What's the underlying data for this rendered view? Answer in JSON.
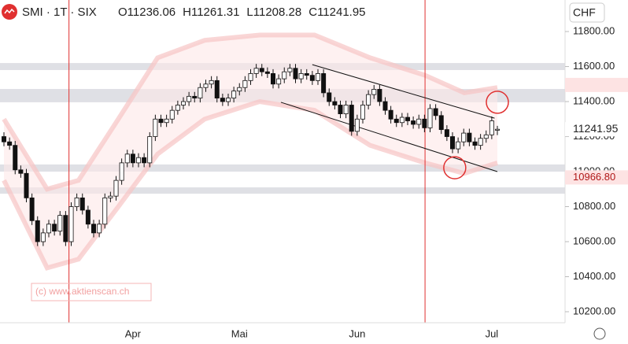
{
  "chart_data": {
    "type": "candlestick",
    "title": "SMI · 1T · SIX",
    "ohlc_labels": [
      "O",
      "H",
      "L",
      "C"
    ],
    "currency": "CHF",
    "watermark": "(c) www.aktienscan.ch",
    "categories": [
      null,
      null,
      null,
      null,
      null,
      null,
      null,
      null,
      null,
      null,
      null,
      null,
      null,
      null,
      null,
      null,
      null,
      null,
      null,
      null,
      null,
      null,
      null,
      "Apr",
      null,
      null,
      null,
      null,
      null,
      null,
      null,
      null,
      null,
      null,
      null,
      null,
      null,
      null,
      null,
      null,
      null,
      null,
      "Mai",
      null,
      null,
      null,
      null,
      null,
      null,
      null,
      null,
      null,
      null,
      null,
      null,
      null,
      null,
      null,
      null,
      null,
      null,
      null,
      null,
      "Jun",
      null,
      null,
      null,
      null,
      null,
      null,
      null,
      null,
      null,
      null,
      null,
      null,
      null,
      null,
      null,
      null,
      null,
      null,
      null,
      null,
      null,
      null,
      null,
      "Jul",
      null
    ],
    "open": [
      11200,
      11170,
      11150,
      11010,
      10990,
      10850,
      10720,
      10600,
      10650,
      10700,
      10660,
      10750,
      10600,
      10800,
      10850,
      10780,
      10700,
      10650,
      10700,
      10850,
      10860,
      10950,
      11050,
      11100,
      11050,
      11080,
      11050,
      11200,
      11300,
      11280,
      11300,
      11350,
      11380,
      11400,
      11430,
      11420,
      11480,
      11500,
      11520,
      11420,
      11400,
      11420,
      11460,
      11480,
      11520,
      11560,
      11590,
      11570,
      11560,
      11500,
      11530,
      11570,
      11590,
      11530,
      11560,
      11550,
      11520,
      11560,
      11450,
      11400,
      11380,
      11330,
      11380,
      11230,
      11300,
      11380,
      11440,
      11470,
      11400,
      11350,
      11300,
      11280,
      11310,
      11290,
      11270,
      11300,
      11250,
      11360,
      11320,
      11240,
      11200,
      11130,
      11170,
      11220,
      11170,
      11150,
      11190,
      11210,
      11236.06
    ],
    "high": [
      11225,
      11195,
      11175,
      11035,
      11015,
      10875,
      10745,
      10675,
      10725,
      10725,
      10775,
      10775,
      10825,
      10875,
      10875,
      10805,
      10725,
      10725,
      10875,
      10885,
      10975,
      11075,
      11125,
      11125,
      11105,
      11105,
      11225,
      11325,
      11325,
      11325,
      11375,
      11405,
      11425,
      11455,
      11455,
      11505,
      11525,
      11545,
      11545,
      11445,
      11445,
      11485,
      11505,
      11545,
      11585,
      11615,
      11615,
      11595,
      11585,
      11555,
      11595,
      11615,
      11615,
      11585,
      11585,
      11575,
      11585,
      11585,
      11475,
      11425,
      11405,
      11405,
      11405,
      11325,
      11405,
      11465,
      11495,
      11495,
      11425,
      11375,
      11325,
      11335,
      11335,
      11315,
      11325,
      11325,
      11385,
      11385,
      11345,
      11265,
      11225,
      11195,
      11245,
      11245,
      11195,
      11215,
      11235,
      11315,
      11261.31
    ],
    "low": [
      11145,
      11125,
      10985,
      10965,
      10825,
      10695,
      10575,
      10575,
      10625,
      10635,
      10635,
      10575,
      10575,
      10775,
      10755,
      10675,
      10625,
      10625,
      10675,
      10825,
      10835,
      10925,
      11025,
      11025,
      11025,
      11025,
      11025,
      11175,
      11255,
      11255,
      11275,
      11325,
      11355,
      11375,
      11395,
      11395,
      11455,
      11475,
      11395,
      11375,
      11375,
      11395,
      11435,
      11455,
      11495,
      11535,
      11545,
      11535,
      11475,
      11475,
      11505,
      11545,
      11505,
      11505,
      11525,
      11495,
      11495,
      11425,
      11375,
      11355,
      11305,
      11305,
      11205,
      11205,
      11275,
      11355,
      11415,
      11375,
      11325,
      11275,
      11255,
      11255,
      11265,
      11245,
      11245,
      11225,
      11225,
      11295,
      11215,
      11175,
      11105,
      11105,
      11145,
      11145,
      11125,
      11125,
      11165,
      11185,
      11208.28
    ],
    "close": [
      11170,
      11150,
      11010,
      10990,
      10850,
      10720,
      10600,
      10650,
      10700,
      10660,
      10750,
      10600,
      10800,
      10850,
      10780,
      10700,
      10650,
      10700,
      10850,
      10860,
      10950,
      11050,
      11100,
      11050,
      11080,
      11050,
      11200,
      11300,
      11280,
      11300,
      11350,
      11380,
      11400,
      11430,
      11420,
      11480,
      11500,
      11520,
      11420,
      11400,
      11420,
      11460,
      11480,
      11520,
      11560,
      11590,
      11570,
      11560,
      11500,
      11530,
      11570,
      11590,
      11530,
      11560,
      11550,
      11520,
      11560,
      11450,
      11400,
      11380,
      11330,
      11380,
      11230,
      11300,
      11380,
      11440,
      11470,
      11400,
      11350,
      11300,
      11280,
      11310,
      11290,
      11270,
      11300,
      11250,
      11360,
      11320,
      11240,
      11200,
      11130,
      11170,
      11220,
      11170,
      11150,
      11190,
      11210,
      11290,
      11241.95
    ],
    "up_color": "#ffffff",
    "down_color": "#111111",
    "accent_color": "#e03030",
    "ylim": [
      10137,
      11980
    ],
    "yticks": [
      {
        "value": 10200,
        "label": "10200.00"
      },
      {
        "value": 10400,
        "label": "10400.00"
      },
      {
        "value": 10600,
        "label": "10600.00"
      },
      {
        "value": 10800,
        "label": "10800.00"
      },
      {
        "value": 11000,
        "label": "11000.00"
      },
      {
        "value": 11200,
        "label": "11200.00"
      },
      {
        "value": 11400,
        "label": "11400.00"
      },
      {
        "value": 11600,
        "label": "11600.00"
      },
      {
        "value": 11800,
        "label": "11800.00"
      }
    ],
    "levels": [
      {
        "value": 11495.11
      },
      {
        "value": 10966.8,
        "label": "10966.80"
      }
    ],
    "zones": [
      {
        "from": 11580,
        "to": 11620
      },
      {
        "from": 11396,
        "to": 11472
      },
      {
        "from": 11000,
        "to": 11041
      },
      {
        "from": 10874,
        "to": 10910
      }
    ],
    "trendlines": [
      {
        "x": [
          55,
          87.5
        ],
        "y": [
          11611,
          11305
        ]
      },
      {
        "x": [
          49.4,
          88
        ],
        "y": [
          11396,
          11000
        ]
      }
    ],
    "vlines": [
      11.6,
      75.1
    ],
    "circles": {
      "x": [
        88,
        80.4
      ],
      "y": [
        11396,
        11022
      ]
    },
    "envelope": {
      "x": [
        0,
        7.7,
        13.3,
        20.4,
        27.4,
        35.8,
        45.6,
        55.4,
        65.3,
        75.1,
        82.1,
        88
      ],
      "upper": [
        11300,
        10900,
        10950,
        11300,
        11650,
        11750,
        11780,
        11780,
        11650,
        11550,
        11450,
        11480
      ],
      "lower": [
        10950,
        10450,
        10500,
        10800,
        11100,
        11300,
        11400,
        11350,
        11150,
        11050,
        10990,
        11050
      ]
    }
  }
}
